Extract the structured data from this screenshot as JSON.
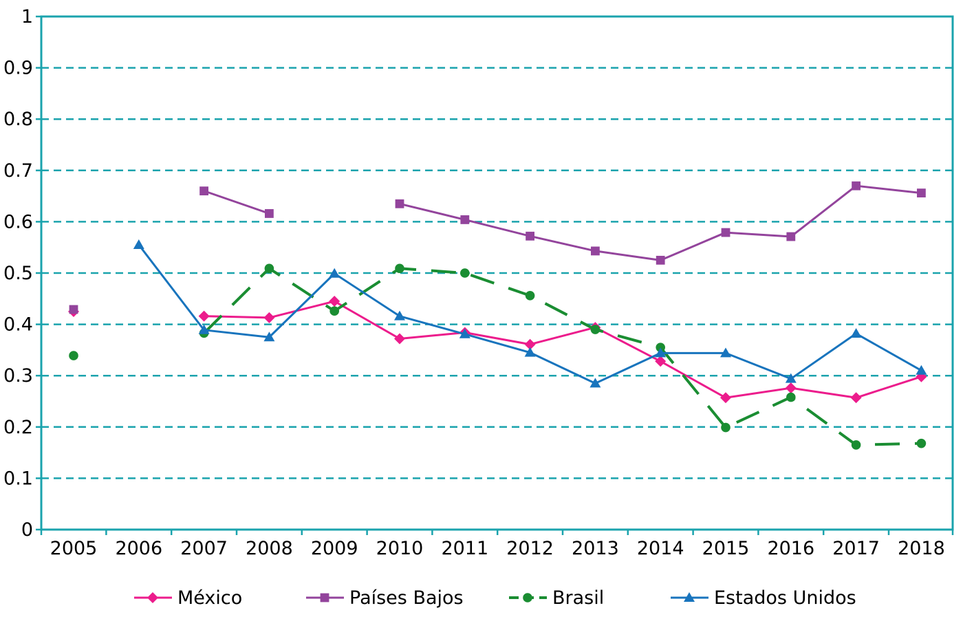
{
  "chart_data": {
    "type": "line",
    "title": "",
    "xlabel": "",
    "ylabel": "",
    "ylim": [
      0,
      1
    ],
    "yticks": [
      "0",
      "0.1",
      "0.2",
      "0.3",
      "0.4",
      "0.5",
      "0.6",
      "0.7",
      "0.8",
      "0.9",
      "1"
    ],
    "grid": "horizontal dashed",
    "legend_position": "bottom",
    "categories": [
      "2005",
      "2006",
      "2007",
      "2008",
      "2009",
      "2010",
      "2011",
      "2012",
      "2013",
      "2014",
      "2015",
      "2016",
      "2017",
      "2018"
    ],
    "series": [
      {
        "name": "México",
        "color": "#ec1c8c",
        "marker": "diamond",
        "dash": "solid",
        "values": [
          0.425,
          null,
          0.416,
          0.413,
          0.445,
          0.372,
          0.384,
          0.361,
          0.394,
          0.328,
          0.257,
          0.276,
          0.257,
          0.298
        ]
      },
      {
        "name": "Países Bajos",
        "color": "#93449c",
        "marker": "square",
        "dash": "solid",
        "values": [
          0.429,
          null,
          0.66,
          0.616,
          null,
          0.635,
          0.604,
          0.572,
          0.543,
          0.525,
          0.579,
          0.571,
          0.67,
          0.656
        ]
      },
      {
        "name": "Brasil",
        "color": "#1a8d32",
        "marker": "circle",
        "dash": "dashed",
        "values": [
          0.339,
          null,
          0.383,
          0.509,
          0.426,
          0.509,
          0.5,
          0.456,
          0.39,
          0.355,
          0.199,
          0.258,
          0.165,
          0.168
        ]
      },
      {
        "name": "Estados Unidos",
        "color": "#1874bd",
        "marker": "triangle",
        "dash": "solid",
        "values": [
          null,
          0.555,
          0.389,
          0.375,
          0.499,
          0.416,
          0.381,
          0.345,
          0.285,
          0.344,
          0.344,
          0.294,
          0.382,
          0.31
        ]
      }
    ]
  },
  "colors": {
    "axis": "#1aa3ad",
    "grid": "#1aa3ad"
  }
}
